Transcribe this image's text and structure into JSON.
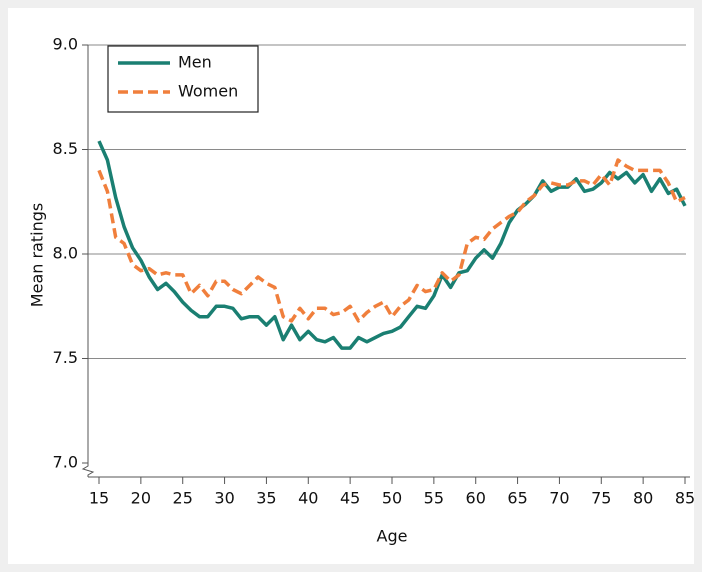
{
  "chart_data": {
    "type": "line",
    "x_label": "Age",
    "y_label": "Mean ratings",
    "x": [
      15,
      16,
      17,
      18,
      19,
      20,
      21,
      22,
      23,
      24,
      25,
      26,
      27,
      28,
      29,
      30,
      31,
      32,
      33,
      34,
      35,
      36,
      37,
      38,
      39,
      40,
      41,
      42,
      43,
      44,
      45,
      46,
      47,
      48,
      49,
      50,
      51,
      52,
      53,
      54,
      55,
      56,
      57,
      58,
      59,
      60,
      61,
      62,
      63,
      64,
      65,
      66,
      67,
      68,
      69,
      70,
      71,
      72,
      73,
      74,
      75,
      76,
      77,
      78,
      79,
      80,
      81,
      82,
      83,
      84,
      85
    ],
    "series": [
      {
        "name": "Men",
        "color": "#1a7f72",
        "dashed": false,
        "values": [
          8.54,
          8.45,
          8.27,
          8.13,
          8.03,
          7.97,
          7.89,
          7.83,
          7.86,
          7.82,
          7.77,
          7.73,
          7.7,
          7.7,
          7.75,
          7.75,
          7.74,
          7.69,
          7.7,
          7.7,
          7.66,
          7.7,
          7.59,
          7.66,
          7.59,
          7.63,
          7.59,
          7.58,
          7.6,
          7.55,
          7.55,
          7.6,
          7.58,
          7.6,
          7.62,
          7.63,
          7.65,
          7.7,
          7.75,
          7.74,
          7.8,
          7.9,
          7.84,
          7.91,
          7.92,
          7.98,
          8.02,
          7.98,
          8.05,
          8.15,
          8.21,
          8.24,
          8.28,
          8.35,
          8.3,
          8.32,
          8.32,
          8.36,
          8.3,
          8.31,
          8.34,
          8.39,
          8.36,
          8.39,
          8.34,
          8.38,
          8.3,
          8.36,
          8.29,
          8.31,
          8.23
        ]
      },
      {
        "name": "Women",
        "color": "#f07f3c",
        "dashed": true,
        "values": [
          8.4,
          8.3,
          8.08,
          8.05,
          7.95,
          7.92,
          7.93,
          7.9,
          7.91,
          7.9,
          7.9,
          7.81,
          7.85,
          7.8,
          7.87,
          7.87,
          7.83,
          7.81,
          7.85,
          7.89,
          7.86,
          7.84,
          7.7,
          7.68,
          7.74,
          7.69,
          7.74,
          7.74,
          7.71,
          7.72,
          7.75,
          7.68,
          7.72,
          7.75,
          7.77,
          7.7,
          7.75,
          7.78,
          7.85,
          7.82,
          7.83,
          7.91,
          7.87,
          7.9,
          8.05,
          8.08,
          8.07,
          8.12,
          8.15,
          8.18,
          8.2,
          8.25,
          8.28,
          8.33,
          8.34,
          8.33,
          8.33,
          8.35,
          8.35,
          8.33,
          8.38,
          8.33,
          8.45,
          8.42,
          8.4,
          8.4,
          8.4,
          8.4,
          8.34,
          8.25,
          8.27
        ]
      }
    ],
    "xlim": [
      15,
      85
    ],
    "xticks": [
      15,
      20,
      25,
      30,
      35,
      40,
      45,
      50,
      55,
      60,
      65,
      70,
      75,
      80,
      85
    ],
    "ylim": [
      7,
      9
    ],
    "yticks": [
      {
        "value": 7,
        "label": "7.0"
      },
      7.5,
      {
        "value": 8,
        "label": "8.0"
      },
      8.5,
      {
        "value": 9,
        "label": "9.0"
      }
    ],
    "grid": true,
    "legend": "top-left"
  }
}
